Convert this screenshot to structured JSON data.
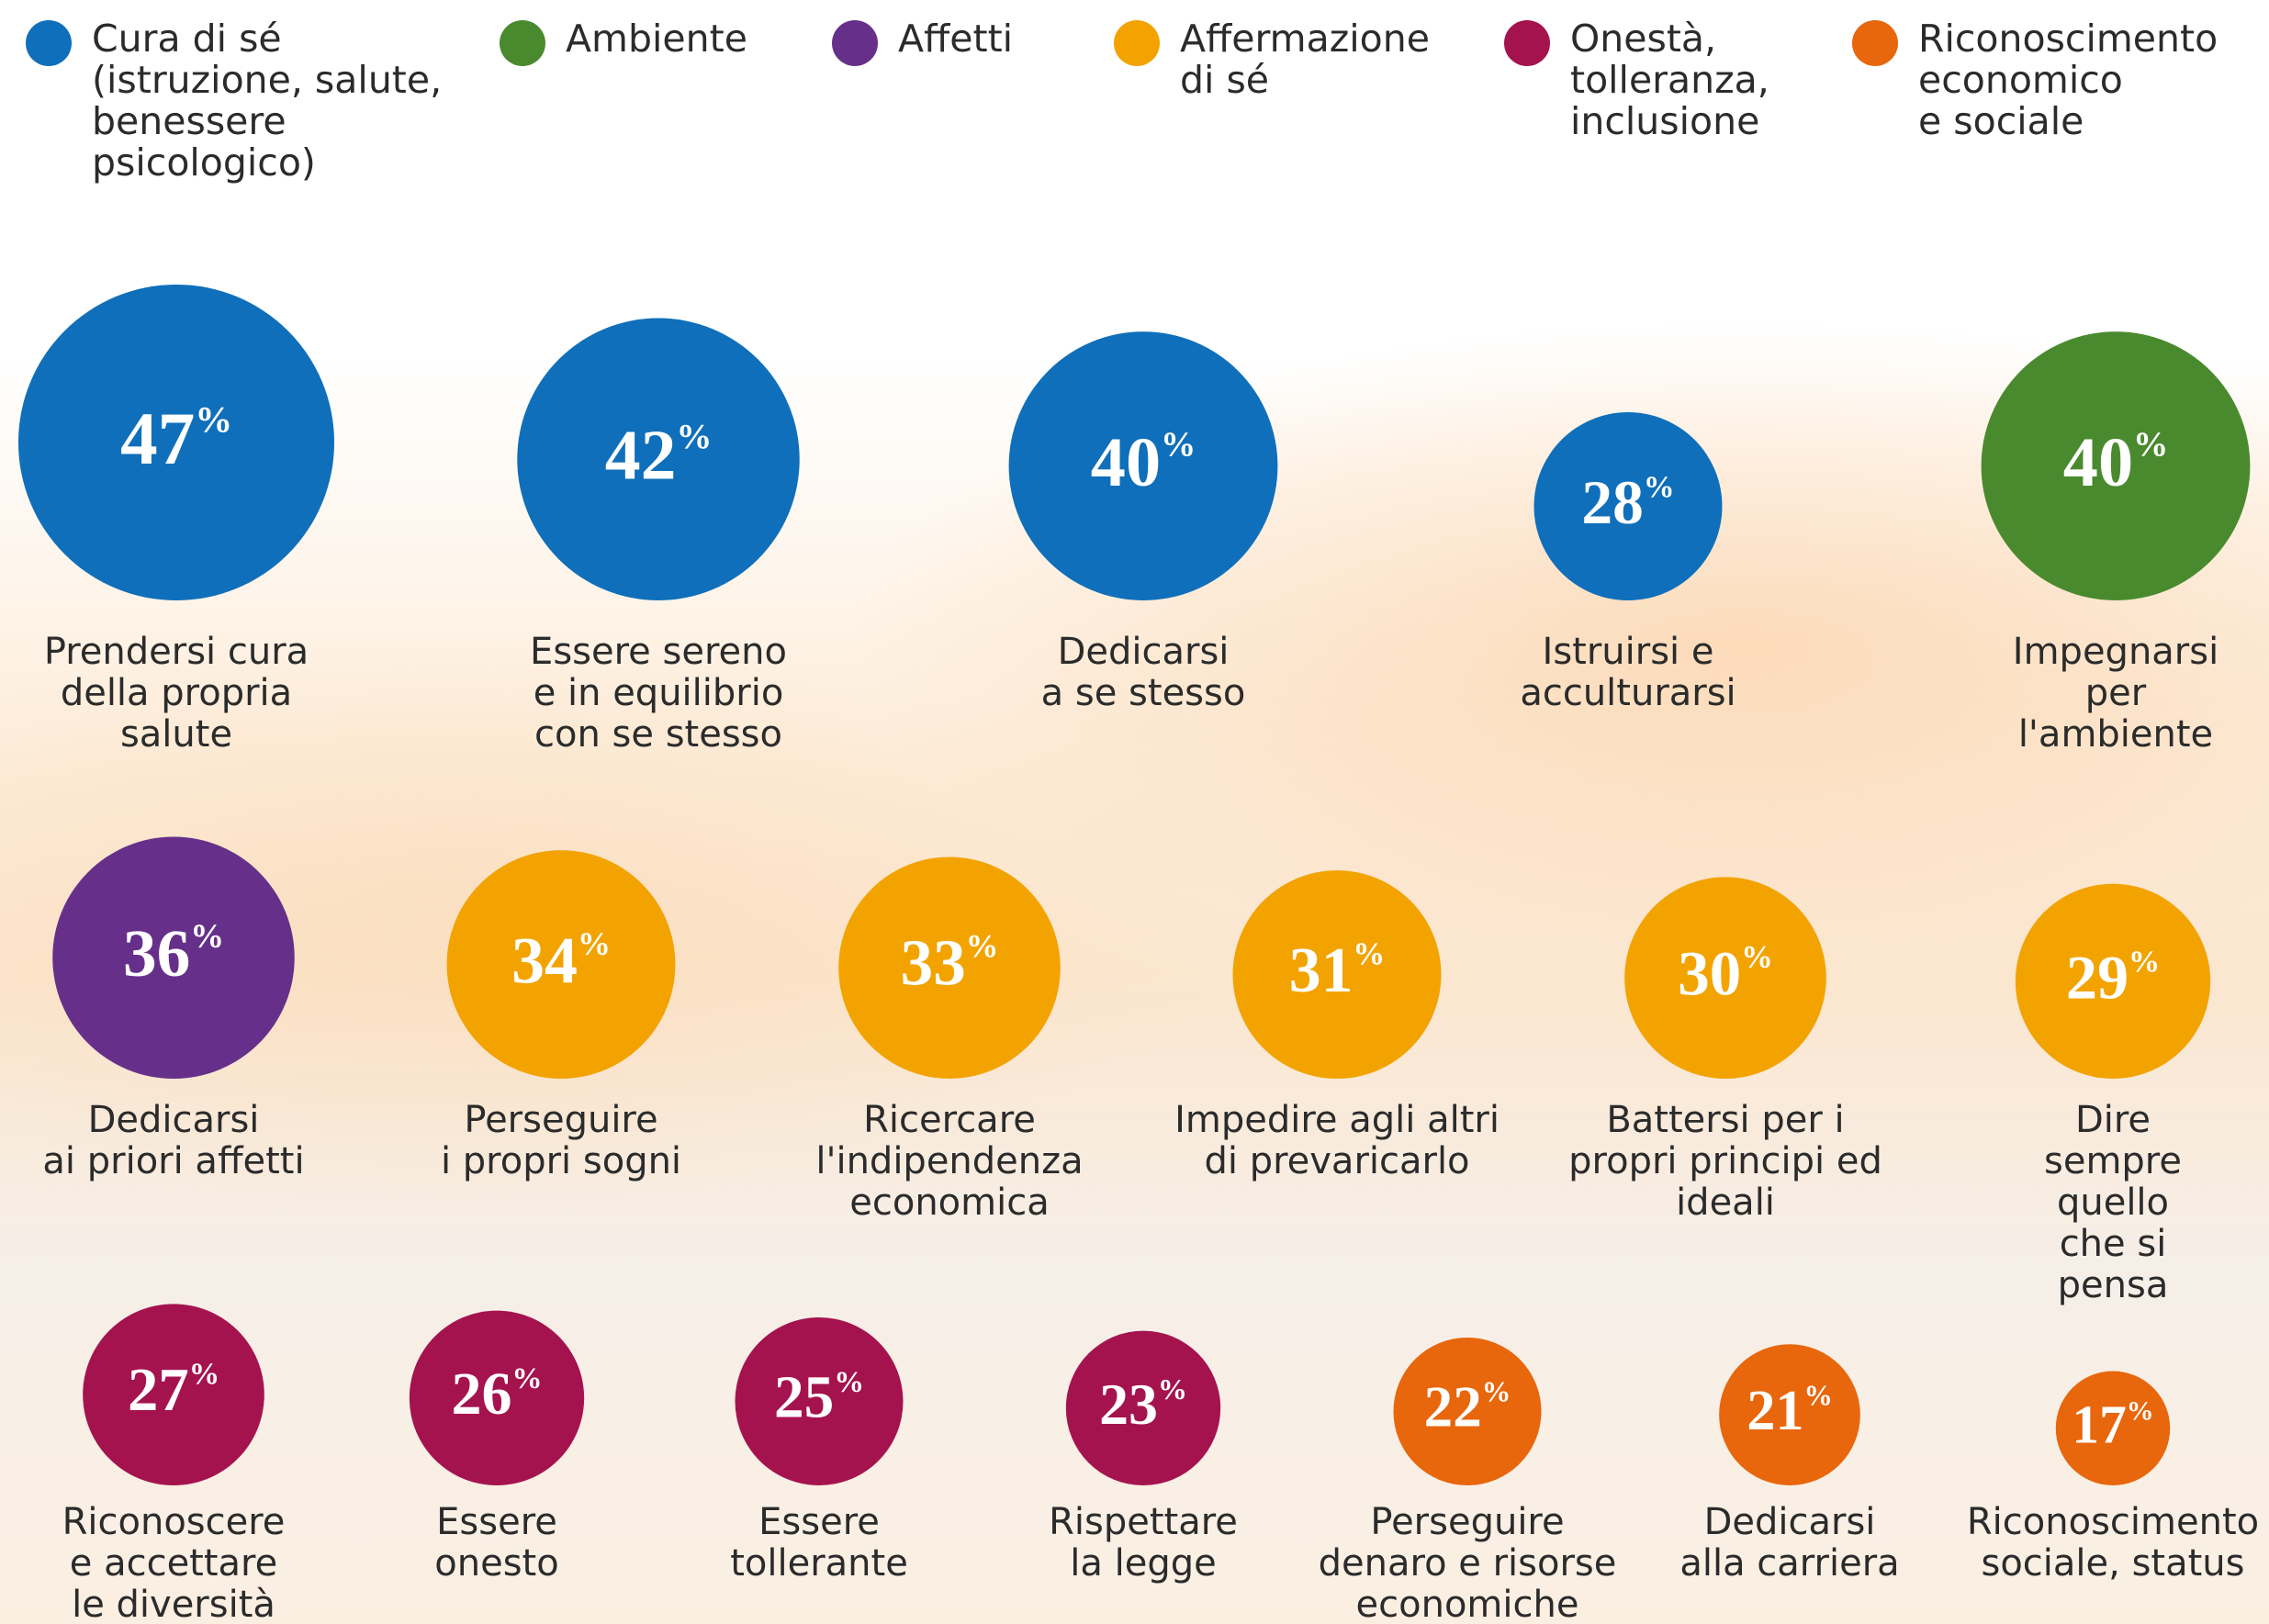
{
  "chart_data": {
    "type": "bubble",
    "unit": "%",
    "series": [
      {
        "name": "Cura di sé\n(istruzione, salute,\nbenessere\npsicologico)",
        "color": "#0f6fba",
        "categories": [
          "Prendersi cura\ndella propria\nsalute",
          "Essere sereno\ne in equilibrio\ncon se stesso",
          "Dedicarsi\na se stesso",
          "Istruirsi e\nacculturarsi"
        ],
        "values": [
          47,
          42,
          40,
          28
        ]
      },
      {
        "name": "Ambiente",
        "color": "#4a8a2e",
        "categories": [
          "Impegnarsi\nper l'ambiente"
        ],
        "values": [
          40
        ]
      },
      {
        "name": "Affetti",
        "color": "#66308a",
        "categories": [
          "Dedicarsi\nai priori affetti"
        ],
        "values": [
          36
        ]
      },
      {
        "name": "Affermazione\ndi sé",
        "color": "#f3a300",
        "categories": [
          "Perseguire\ni propri sogni",
          "Ricercare\nl'indipendenza\neconomica",
          "Impedire agli altri\ndi prevaricarlo",
          "Battersi per i\npropri principi ed\nideali",
          "Dire sempre\nquello che si\npensa"
        ],
        "values": [
          34,
          33,
          31,
          30,
          29
        ]
      },
      {
        "name": "Onestà,\ntolleranza,\ninclusione",
        "color": "#a5134f",
        "categories": [
          "Riconoscere\ne accettare\nle diversità",
          "Essere\nonesto",
          "Essere\ntollerante",
          "Rispettare\nla legge"
        ],
        "values": [
          27,
          26,
          25,
          23
        ]
      },
      {
        "name": "Riconoscimento\neconomico\ne sociale",
        "color": "#e8660c",
        "categories": [
          "Perseguire\ndenaro e risorse\neconomiche",
          "Dedicarsi\nalla carriera",
          "Riconoscimento\nsociale, status"
        ],
        "values": [
          22,
          21,
          17
        ]
      }
    ]
  }
}
